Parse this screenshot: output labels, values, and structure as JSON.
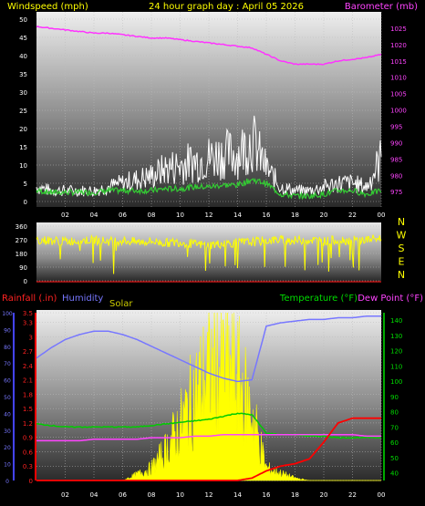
{
  "header": {
    "left": "Windspeed (mph)",
    "center": "24 hour graph day : April 05 2026",
    "right": "Barometer (mb)"
  },
  "colors": {
    "wind_avg": "#33cc33",
    "wind_gust": "#ffffff",
    "barometer": "#ff33ff",
    "direction": "#ffff00",
    "rain": "#ff0000",
    "humidity": "#7777ff",
    "solar": "#ffff00",
    "temperature": "#00cc00",
    "dewpoint": "#ff44ff",
    "red_text": "#ff2222",
    "green_text": "#00dd00",
    "magenta_text": "#ff44ff",
    "yellow_text": "#ffff00",
    "blue_text": "#7777ff"
  },
  "bottom_labels": {
    "rain": "Rainfall (.in)",
    "humidity": "Humidity",
    "solar": "Solar",
    "temperature": "Temperature (°F)",
    "dewpoint": "Dew Point (°F)"
  },
  "direction_letters": [
    "N",
    "W",
    "S",
    "E",
    "N"
  ],
  "x_tick_labels": [
    "02",
    "04",
    "06",
    "08",
    "10",
    "12",
    "14",
    "16",
    "18",
    "20",
    "22",
    "00"
  ],
  "chart_data": [
    {
      "type": "line",
      "title": "24 hour graph day : April 05 2026",
      "xlabel": "",
      "ylabel": "Windspeed (mph)",
      "y2label": "Barometer (mb)",
      "ylim": [
        0,
        50
      ],
      "y2lim": [
        972,
        1030
      ],
      "y_ticks": [
        "0",
        "5",
        "10",
        "15",
        "20",
        "25",
        "30",
        "35",
        "40",
        "45",
        "50"
      ],
      "y2_ticks": [
        "975",
        "980",
        "985",
        "990",
        "995",
        "1000",
        "1005",
        "1010",
        "1015",
        "1020",
        "1025"
      ],
      "x_hours": [
        0,
        1,
        2,
        3,
        4,
        5,
        6,
        7,
        8,
        9,
        10,
        11,
        12,
        13,
        14,
        15,
        16,
        17,
        18,
        19,
        20,
        21,
        22,
        23,
        24
      ],
      "series": [
        {
          "values": [
            4,
            3,
            3,
            3,
            3,
            4,
            5,
            6,
            7,
            9,
            10,
            11,
            12,
            13,
            13,
            17,
            9,
            4,
            3,
            3,
            4,
            5,
            5,
            4,
            12
          ]
        },
        {
          "values": [
            3,
            2.5,
            2.5,
            2.5,
            2.5,
            3,
            3,
            3,
            3,
            3.5,
            3.5,
            4,
            4,
            4.5,
            4.5,
            6,
            5,
            2,
            1.5,
            1.5,
            2,
            3,
            3,
            2,
            3
          ]
        },
        {
          "values": [
            1025.5,
            1025,
            1024.5,
            1024,
            1023.5,
            1023.5,
            1023,
            1022.5,
            1022,
            1022,
            1021.5,
            1021,
            1020.5,
            1020,
            1019.5,
            1019,
            1017,
            1015,
            1014,
            1014,
            1014,
            1015,
            1015.5,
            1016,
            1017
          ]
        }
      ]
    },
    {
      "type": "line",
      "ylabel": "",
      "ylim": [
        0,
        360
      ],
      "y_ticks": [
        "0",
        "90",
        "180",
        "270",
        "360"
      ],
      "x_hours": [
        0,
        1,
        2,
        3,
        4,
        5,
        6,
        7,
        8,
        9,
        10,
        11,
        12,
        13,
        14,
        15,
        16,
        17,
        18,
        19,
        20,
        21,
        22,
        23,
        24
      ],
      "series": [
        {
          "values": [
            270,
            265,
            260,
            265,
            270,
            260,
            265,
            255,
            260,
            250,
            255,
            240,
            235,
            245,
            250,
            255,
            265,
            270,
            265,
            270,
            260,
            270,
            265,
            270,
            280
          ]
        }
      ]
    },
    {
      "type": "line",
      "ylim_rain": [
        0,
        3.5
      ],
      "ylim_humidity": [
        0,
        100
      ],
      "ylim_temp": [
        30,
        145
      ],
      "rain_ticks": [
        "0",
        "0.3",
        "0.6",
        "0.9",
        "1.2",
        "1.5",
        "1.8",
        "2.1",
        "2.4",
        "2.7",
        "3",
        "3.3",
        "3.5"
      ],
      "humidity_ticks": [
        "0",
        "10",
        "20",
        "30",
        "40",
        "50",
        "60",
        "70",
        "80",
        "90",
        "100"
      ],
      "temp_ticks": [
        "40",
        "50",
        "60",
        "70",
        "80",
        "90",
        "100",
        "110",
        "120",
        "130",
        "140"
      ],
      "x_hours": [
        0,
        1,
        2,
        3,
        4,
        5,
        6,
        7,
        8,
        9,
        10,
        11,
        12,
        13,
        14,
        15,
        16,
        17,
        18,
        19,
        20,
        21,
        22,
        23,
        24
      ],
      "series": [
        {
          "values": [
            73,
            79,
            84,
            87,
            89,
            89,
            87,
            84,
            80,
            76,
            72,
            68,
            64,
            61,
            59,
            60,
            92,
            94,
            95,
            96,
            96,
            97,
            97,
            98,
            98
          ]
        },
        {
          "values": [
            0,
            0,
            0,
            0,
            0,
            0,
            0,
            0,
            0,
            0,
            0,
            0,
            0,
            0,
            0,
            0.05,
            0.2,
            0.3,
            0.35,
            0.45,
            0.8,
            1.2,
            1.3,
            1.3,
            1.3
          ]
        },
        {
          "values": [
            72,
            71,
            70,
            70,
            70,
            70,
            70,
            70,
            71,
            72,
            73,
            74,
            75,
            77,
            79,
            78,
            66,
            65,
            65,
            64,
            64,
            63,
            63,
            63,
            63
          ]
        },
        {
          "values": [
            61,
            61,
            61,
            61,
            62,
            62,
            62,
            62,
            63,
            63,
            63,
            64,
            64,
            65,
            65,
            65,
            65,
            65,
            65,
            65,
            65,
            65,
            65,
            64,
            64
          ]
        },
        {
          "values": [
            0,
            0,
            0,
            0,
            0,
            0,
            0,
            5,
            10,
            25,
            45,
            70,
            90,
            95,
            85,
            55,
            10,
            6,
            2,
            0,
            0,
            0,
            0,
            0,
            0
          ]
        }
      ]
    }
  ]
}
